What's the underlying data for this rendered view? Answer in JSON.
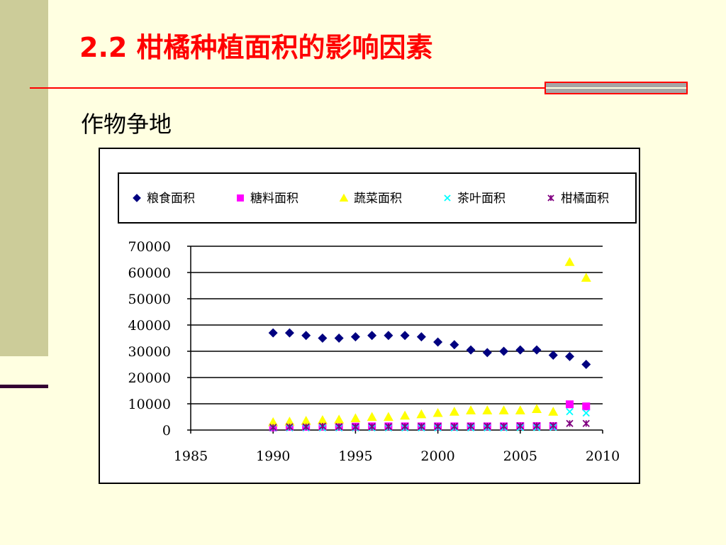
{
  "slide": {
    "title": "2.2  柑橘种植面积的影响因素",
    "subtitle": "作物争地"
  },
  "colors": {
    "title": "#FF0000",
    "background": "#FFFFE1",
    "accent_bar": "#CCCC99"
  },
  "chart_data": {
    "type": "scatter",
    "xlim": [
      1985,
      2010
    ],
    "ylim": [
      0,
      70000
    ],
    "x_ticks": [
      1985,
      1990,
      1995,
      2000,
      2005,
      2010
    ],
    "y_ticks": [
      0,
      10000,
      20000,
      30000,
      40000,
      50000,
      60000,
      70000
    ],
    "grid": "horizontal",
    "legend_position": "top",
    "x": [
      1990,
      1991,
      1992,
      1993,
      1994,
      1995,
      1996,
      1997,
      1998,
      1999,
      2000,
      2001,
      2002,
      2003,
      2004,
      2005,
      2006,
      2007,
      2008,
      2009
    ],
    "series": [
      {
        "name": "粮食面积",
        "marker": "diamond",
        "color": "#000080",
        "values": [
          37000,
          37000,
          36000,
          35000,
          35000,
          35500,
          36000,
          36000,
          36000,
          35500,
          33500,
          32500,
          30500,
          29500,
          30000,
          30500,
          30500,
          28500,
          28000,
          25000
        ]
      },
      {
        "name": "糖料面积",
        "marker": "square",
        "color": "#FF00FF",
        "values": [
          1000,
          1200,
          1200,
          1300,
          1300,
          1300,
          1400,
          1400,
          1400,
          1400,
          1400,
          1400,
          1400,
          1400,
          1400,
          1500,
          1500,
          1500,
          9800,
          9000
        ]
      },
      {
        "name": "蔬菜面积",
        "marker": "triangle",
        "color": "#FFFF00",
        "values": [
          3000,
          3200,
          3500,
          3800,
          4000,
          4500,
          5000,
          5000,
          5500,
          6000,
          6500,
          7000,
          7500,
          7500,
          7500,
          7500,
          8000,
          7000,
          64000,
          58000
        ]
      },
      {
        "name": "茶叶面积",
        "marker": "x",
        "color": "#00FFFF",
        "values": [
          800,
          800,
          800,
          800,
          800,
          800,
          800,
          800,
          800,
          800,
          800,
          800,
          800,
          800,
          800,
          900,
          900,
          1000,
          7000,
          6500
        ]
      },
      {
        "name": "柑橘面积",
        "marker": "star",
        "color": "#800080",
        "values": [
          1000,
          1200,
          1200,
          1500,
          1300,
          1200,
          1300,
          1300,
          1400,
          1400,
          1400,
          1400,
          1500,
          1500,
          1500,
          1600,
          1600,
          1700,
          2500,
          2500
        ]
      }
    ]
  }
}
